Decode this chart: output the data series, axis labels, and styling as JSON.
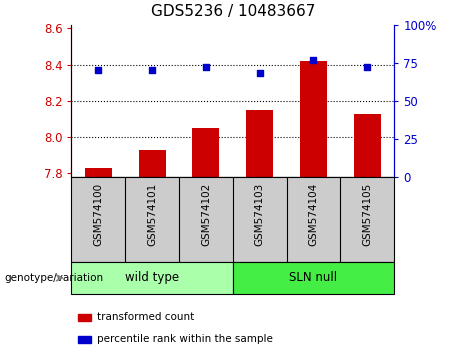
{
  "title": "GDS5236 / 10483667",
  "categories": [
    "GSM574100",
    "GSM574101",
    "GSM574102",
    "GSM574103",
    "GSM574104",
    "GSM574105"
  ],
  "bar_values": [
    7.83,
    7.93,
    8.05,
    8.15,
    8.42,
    8.13
  ],
  "scatter_values": [
    70,
    70,
    72,
    68,
    77,
    72
  ],
  "ylim_left": [
    7.78,
    8.62
  ],
  "ylim_right": [
    0,
    100
  ],
  "yticks_left": [
    7.8,
    8.0,
    8.2,
    8.4,
    8.6
  ],
  "yticks_right": [
    0,
    25,
    50,
    75,
    100
  ],
  "bar_color": "#cc0000",
  "scatter_color": "#0000cc",
  "bar_bottom": 7.78,
  "grid_lines": [
    8.0,
    8.2,
    8.4
  ],
  "groups": [
    {
      "label": "wild type",
      "start": 0,
      "end": 3,
      "color": "#aaffaa"
    },
    {
      "label": "SLN null",
      "start": 3,
      "end": 6,
      "color": "#44ee44"
    }
  ],
  "group_label": "genotype/variation",
  "legend_items": [
    {
      "label": "transformed count",
      "color": "#cc0000"
    },
    {
      "label": "percentile rank within the sample",
      "color": "#0000cc"
    }
  ],
  "title_fontsize": 11,
  "tick_label_color_left": "#cc0000",
  "tick_label_color_right": "#0000cc",
  "plot_bg_color": "#ffffff",
  "label_box_color": "#cccccc",
  "label_box_edge": "#888888"
}
